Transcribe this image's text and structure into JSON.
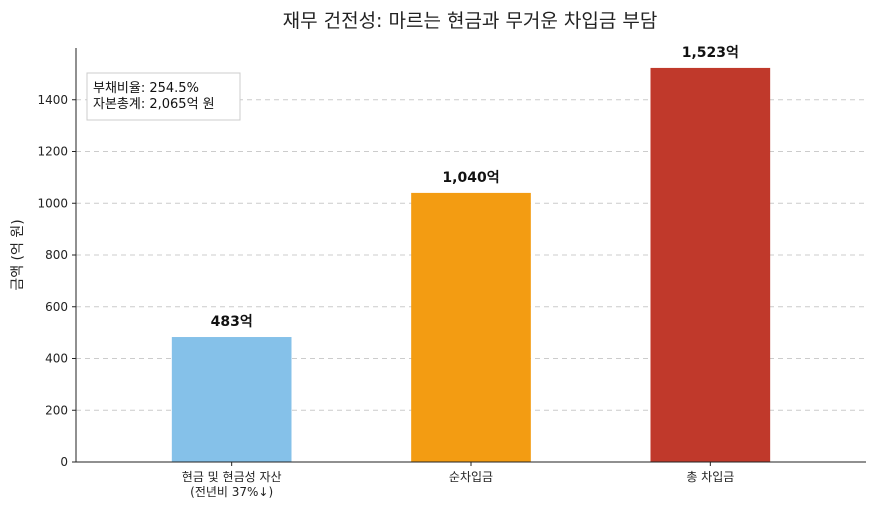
{
  "chart_data": {
    "type": "bar",
    "title": "재무 건전성: 마르는 현금과 무거운 차입금 부담",
    "xlabel": "",
    "ylabel": "금액 (억 원)",
    "ylim": [
      0,
      1600
    ],
    "yticks": [
      0,
      200,
      400,
      600,
      800,
      1000,
      1200,
      1400
    ],
    "grid": "y-dashed",
    "categories": [
      [
        "현금 및 현금성 자산",
        "(전년비 37%↓)"
      ],
      [
        "순차입금"
      ],
      [
        "총 차입금"
      ]
    ],
    "values": [
      483,
      1040,
      1523
    ],
    "value_labels": [
      "483억",
      "1,040억",
      "1,523억"
    ],
    "colors": [
      "#85C1E9",
      "#F39C12",
      "#C0392B"
    ],
    "annotation_box": {
      "lines": [
        "부채비율: 254.5%",
        "자본총계: 2,065억 원"
      ],
      "placement": "top-left"
    }
  }
}
